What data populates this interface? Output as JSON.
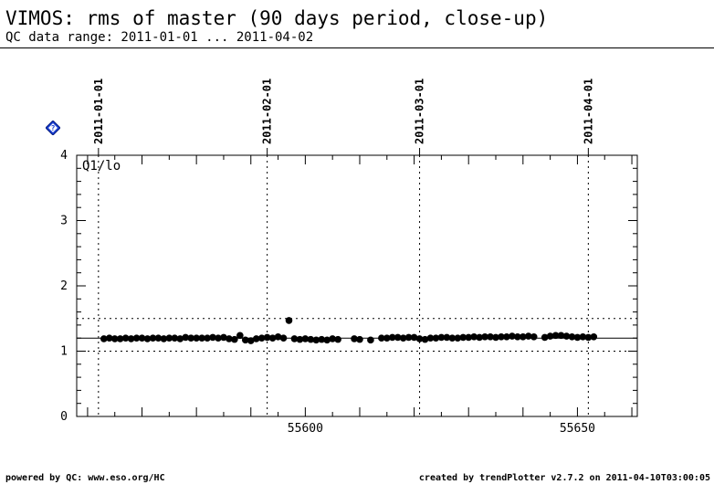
{
  "header": {
    "title": "VIMOS: rms of master (90 days period, close-up)",
    "subtitle": "QC data range: 2011-01-01 ... 2011-04-02"
  },
  "footer": {
    "left": "powered by QC: www.eso.org/HC",
    "right": "created by trendPlotter v2.7.2 on 2011-04-10T03:00:05"
  },
  "icons": {
    "help": "help-icon"
  },
  "colors": {
    "axis": "#000000",
    "points": "#000000",
    "reference_line": "#000000"
  },
  "chart_data": {
    "type": "scatter",
    "panel_label": "Q1/lo",
    "xlim": [
      55558,
      55661
    ],
    "ylim": [
      0,
      4
    ],
    "x_ticks": [
      55600,
      55650
    ],
    "y_ticks": [
      0,
      1,
      2,
      3,
      4
    ],
    "date_markers": [
      {
        "label": "2011-01-01",
        "x": 55562
      },
      {
        "label": "2011-02-01",
        "x": 55593
      },
      {
        "label": "2011-03-01",
        "x": 55621
      },
      {
        "label": "2011-04-01",
        "x": 55652
      }
    ],
    "reference_line": 1.2,
    "threshold_lines": [
      1.0,
      1.5
    ],
    "series": [
      {
        "x": [
          55563,
          55564,
          55565,
          55566,
          55567,
          55568,
          55569,
          55570,
          55571,
          55572,
          55573,
          55574,
          55575,
          55576,
          55577,
          55578,
          55579,
          55580,
          55581,
          55582,
          55583,
          55584,
          55585,
          55586,
          55587,
          55588,
          55589,
          55590,
          55591,
          55592,
          55593,
          55594,
          55595,
          55596,
          55597,
          55598,
          55599,
          55600,
          55601,
          55602,
          55603,
          55604,
          55605,
          55606,
          55609,
          55610,
          55612,
          55614,
          55615,
          55616,
          55617,
          55618,
          55619,
          55620,
          55621,
          55622,
          55623,
          55624,
          55625,
          55626,
          55627,
          55628,
          55629,
          55630,
          55631,
          55632,
          55633,
          55634,
          55635,
          55636,
          55637,
          55638,
          55639,
          55640,
          55641,
          55642,
          55644,
          55645,
          55646,
          55647,
          55648,
          55649,
          55650,
          55651,
          55652,
          55653
        ],
        "y": [
          1.19,
          1.2,
          1.19,
          1.19,
          1.2,
          1.19,
          1.2,
          1.2,
          1.19,
          1.2,
          1.2,
          1.19,
          1.2,
          1.2,
          1.19,
          1.21,
          1.2,
          1.2,
          1.2,
          1.2,
          1.21,
          1.2,
          1.21,
          1.19,
          1.18,
          1.24,
          1.17,
          1.16,
          1.19,
          1.2,
          1.21,
          1.2,
          1.22,
          1.2,
          1.47,
          1.19,
          1.18,
          1.19,
          1.18,
          1.17,
          1.18,
          1.17,
          1.19,
          1.18,
          1.19,
          1.18,
          1.17,
          1.2,
          1.2,
          1.21,
          1.21,
          1.2,
          1.21,
          1.21,
          1.19,
          1.18,
          1.2,
          1.2,
          1.21,
          1.21,
          1.2,
          1.2,
          1.21,
          1.21,
          1.22,
          1.21,
          1.22,
          1.22,
          1.21,
          1.22,
          1.22,
          1.23,
          1.22,
          1.22,
          1.23,
          1.22,
          1.21,
          1.23,
          1.24,
          1.24,
          1.23,
          1.22,
          1.21,
          1.22,
          1.21,
          1.22
        ]
      }
    ]
  }
}
